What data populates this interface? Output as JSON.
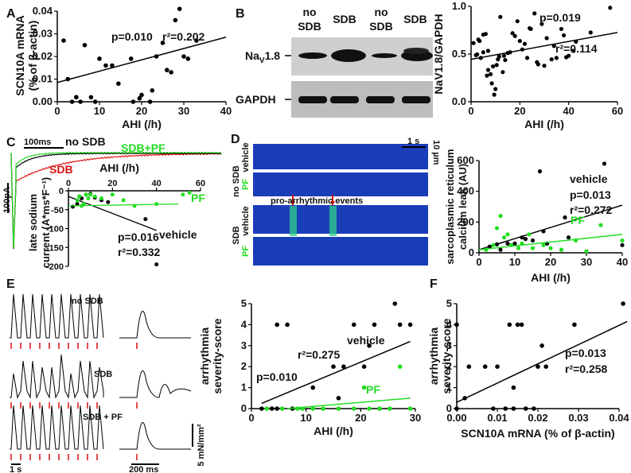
{
  "panels": {
    "A": "A",
    "B": "B",
    "C": "C",
    "D": "D",
    "E": "E",
    "F": "F"
  },
  "colors": {
    "black": "#000000",
    "green": "#22dd22",
    "red": "#dd1111",
    "lane": "#1a3db8"
  },
  "panelB": {
    "lanes": [
      "no\nSDB",
      "SDB",
      "no\nSDB",
      "SDB"
    ],
    "lane_1": [
      "no",
      "SDB"
    ],
    "lane_2": "SDB",
    "lane_3": [
      "no",
      "SDB"
    ],
    "lane_4": "SDB",
    "nav_label": "Na",
    "nav_sub": "V",
    "nav_suffix": "1.8",
    "gapdh_label": "GAPDH"
  },
  "panelC": {
    "scale_time": "100ms",
    "scale_current": "100pA",
    "legend_no_sdb": "no SDB",
    "legend_sdb": "SDB",
    "legend_sdb_pf": "SDB+PF"
  },
  "panelD": {
    "scale_time": "1 s",
    "scale_space": "10 µm",
    "no_sdb": "no SDB",
    "sdb": "SDB",
    "vehicle": "vehicle",
    "pf": "PF",
    "events_label": "pro-arrhythmic events"
  },
  "panelE": {
    "no_sdb": "no SDB",
    "sdb": "SDB",
    "sdb_pf": "SDB + PF",
    "scale_time_1": "1 s",
    "scale_time_2": "200 ms",
    "scale_force": "5 mN/mm²"
  },
  "chart_data": [
    {
      "id": "A",
      "type": "scatter",
      "xlabel": "AHI (/h)",
      "ylabel": "SCN10A mRNA (% of β-actin)",
      "xlim": [
        0,
        40
      ],
      "ylim": [
        0,
        0.04
      ],
      "xticks": [
        "0",
        "10",
        "20",
        "30",
        "40"
      ],
      "yticks": [
        "0.00",
        "0.01",
        "0.02",
        "0.03",
        "0.04"
      ],
      "annotations": [
        "p=0.010",
        "r²=0.202"
      ],
      "fit": [
        [
          0,
          0.0085
        ],
        [
          40,
          0.0285
        ]
      ],
      "x": [
        1.5,
        2.5,
        3.5,
        4.5,
        4.5,
        5.5,
        6.5,
        8,
        9,
        10,
        11.5,
        13,
        14.5,
        17.5,
        18,
        19.5,
        20,
        22,
        22.5,
        23.5,
        25,
        26,
        27,
        28,
        29,
        30,
        31,
        33
      ],
      "y": [
        0.027,
        0.01,
        0.0,
        0.002,
        0.002,
        0.0,
        0.025,
        0.002,
        0.0,
        0.019,
        0.016,
        0.016,
        0.008,
        0.019,
        0.0,
        0.0015,
        0.003,
        0.0,
        0.005,
        0.02,
        0.026,
        0.014,
        0.013,
        0.036,
        0.041,
        0.02,
        0.019,
        0.027
      ]
    },
    {
      "id": "B",
      "type": "scatter",
      "xlabel": "AHI (/h)",
      "ylabel": "NaV1.8/GAPDH",
      "xlim": [
        0,
        60
      ],
      "ylim": [
        0,
        1.35
      ],
      "xticks": [
        "0",
        "20",
        "40",
        "60"
      ],
      "yticks": [
        "0.0",
        "0.5",
        "1.0"
      ],
      "annotations": [
        "p=0.019",
        "r²=0.114"
      ],
      "fit": [
        [
          0,
          0.6
        ],
        [
          60,
          0.98
        ]
      ],
      "x": [
        1,
        2,
        2.5,
        3,
        3.5,
        4,
        5,
        5,
        6,
        6.5,
        7,
        7,
        8,
        8.5,
        9,
        9.5,
        10,
        10.5,
        11,
        11.5,
        12,
        13,
        13.5,
        14,
        15,
        16,
        17,
        18,
        19,
        20,
        21,
        22,
        23,
        24,
        24.5,
        26,
        27,
        27.5,
        29,
        30,
        31,
        33,
        34,
        35,
        37,
        38,
        39,
        40,
        42,
        43,
        49,
        57
      ],
      "y": [
        0.83,
        0.66,
        0.67,
        0.88,
        0.86,
        0.62,
        0.7,
        0.95,
        0.96,
        0.37,
        0.45,
        0.72,
        0.39,
        0.26,
        0.5,
        0.1,
        0.18,
        0.52,
        0.6,
        0.64,
        1.2,
        0.42,
        0.65,
        0.59,
        0.69,
        0.7,
        0.97,
        0.93,
        1.14,
        0.86,
        0.74,
        0.82,
        0.62,
        1.04,
        1.03,
        1.25,
        0.56,
        0.53,
        1.1,
        0.51,
        0.9,
        0.6,
        0.79,
        0.62,
        1.03,
        0.94,
        0.63,
        0.65,
        0.72,
        0.85,
        0.98,
        1.33
      ]
    },
    {
      "id": "C",
      "type": "scatter",
      "xlabel": "AHI (/h)",
      "ylabel": "late sodium current (A*ms*F⁻¹)",
      "xlim": [
        0,
        60
      ],
      "ylim": [
        -200,
        0
      ],
      "xticks": [
        "0",
        "20",
        "40",
        "60"
      ],
      "yticks": [
        "0",
        "-50",
        "-100",
        "-150",
        "-200"
      ],
      "annotations": [
        "p=0.016",
        "r²=0.332"
      ],
      "series": [
        {
          "name": "vehicle",
          "fit": [
            [
              0,
              -15
            ],
            [
              40,
              -105
            ]
          ],
          "x": [
            2,
            4,
            5,
            6,
            8,
            10,
            12,
            15,
            18,
            35,
            40
          ],
          "y": [
            -42,
            -35,
            -15,
            -20,
            -10,
            -8,
            -18,
            -25,
            -30,
            -75,
            -195
          ]
        },
        {
          "name": "PF",
          "fit": [
            [
              0,
              -40
            ],
            [
              50,
              -35
            ]
          ],
          "x": [
            4,
            5,
            6,
            7,
            8,
            9,
            10,
            12,
            15,
            20,
            25,
            30,
            40,
            52,
            55
          ],
          "y": [
            -25,
            -15,
            -40,
            -35,
            -10,
            -20,
            -10,
            -15,
            -20,
            -10,
            -25,
            -40,
            -35,
            -10,
            -5
          ]
        }
      ]
    },
    {
      "id": "D",
      "type": "scatter",
      "xlabel": "AHI (/h)",
      "ylabel": "sarcoplasmic reticulum calcium leak (AU)",
      "xlim": [
        0,
        40
      ],
      "ylim": [
        0,
        600
      ],
      "xticks": [
        "0",
        "10",
        "20",
        "30",
        "40"
      ],
      "yticks": [
        "0",
        "200",
        "400",
        "600"
      ],
      "annotations": [
        "p=0.013",
        "r²=0.272"
      ],
      "series": [
        {
          "name": "vehicle",
          "fit": [
            [
              0,
              20
            ],
            [
              40,
              310
            ]
          ],
          "x": [
            3,
            5,
            6,
            8,
            10,
            12,
            13,
            15,
            17,
            18,
            19,
            24,
            25,
            35,
            40
          ],
          "y": [
            40,
            55,
            20,
            60,
            60,
            100,
            90,
            80,
            530,
            140,
            60,
            230,
            100,
            580,
            50
          ]
        },
        {
          "name": "PF",
          "fit": [
            [
              0,
              20
            ],
            [
              40,
              120
            ]
          ],
          "x": [
            2,
            4,
            5,
            6,
            7,
            8,
            9,
            11,
            12,
            14,
            15,
            18,
            20,
            23,
            27,
            30,
            34,
            40
          ],
          "y": [
            20,
            50,
            160,
            240,
            100,
            120,
            50,
            30,
            60,
            120,
            30,
            50,
            30,
            20,
            80,
            10,
            180,
            80
          ]
        }
      ]
    },
    {
      "id": "E",
      "type": "scatter",
      "xlabel": "AHI (/h)",
      "ylabel": "arrhythmia severity-score",
      "xlim": [
        0,
        32
      ],
      "ylim": [
        0,
        5
      ],
      "xticks": [
        "0",
        "10",
        "20",
        "30"
      ],
      "yticks": [
        "0",
        "1",
        "2",
        "3",
        "4",
        "5"
      ],
      "annotations": [
        "p=0.010",
        "r²=0.275"
      ],
      "series": [
        {
          "name": "vehicle",
          "fit": [
            [
              2,
              0.25
            ],
            [
              31,
              3.2
            ]
          ],
          "x": [
            2,
            4,
            5,
            5,
            7,
            8,
            12,
            16,
            17,
            18,
            20,
            22,
            23,
            24,
            25,
            28,
            29,
            31
          ],
          "y": [
            0,
            0,
            4,
            0,
            4,
            0,
            1,
            2,
            0.5,
            2,
            4,
            2,
            3,
            4,
            0,
            5,
            4,
            4
          ]
        },
        {
          "name": "PF",
          "fit": [
            [
              7,
              0
            ],
            [
              31,
              0.5
            ]
          ],
          "x": [
            3,
            6,
            9,
            10,
            12,
            14,
            17,
            20,
            22,
            23,
            25,
            27,
            29,
            31
          ],
          "y": [
            0,
            0,
            0,
            0,
            0,
            0,
            0,
            0,
            1,
            0,
            0,
            0,
            2,
            0
          ]
        }
      ]
    },
    {
      "id": "F",
      "type": "scatter",
      "xlabel": "SCN10A mRNA (% of β-actin)",
      "ylabel": "arrhythmia severity-score",
      "xlim": [
        0,
        0.04
      ],
      "ylim": [
        0,
        5
      ],
      "xticks": [
        "0.00",
        "0.01",
        "0.02",
        "0.03",
        "0.04"
      ],
      "yticks": [
        "0",
        "1",
        "2",
        "3",
        "4",
        "5"
      ],
      "annotations": [
        "p=0.013",
        "r²=0.258"
      ],
      "fit": [
        [
          0,
          0.3
        ],
        [
          0.042,
          4.15
        ]
      ],
      "x": [
        0.0,
        0.0,
        0.002,
        0.003,
        0.007,
        0.009,
        0.01,
        0.012,
        0.013,
        0.014,
        0.014,
        0.015,
        0.016,
        0.017,
        0.019,
        0.02,
        0.021,
        0.022,
        0.029,
        0.041
      ],
      "y": [
        0,
        4,
        0.5,
        2,
        2,
        0,
        2,
        0,
        4,
        1,
        0,
        4,
        4,
        0,
        0,
        2,
        3,
        2,
        4,
        5
      ]
    }
  ]
}
